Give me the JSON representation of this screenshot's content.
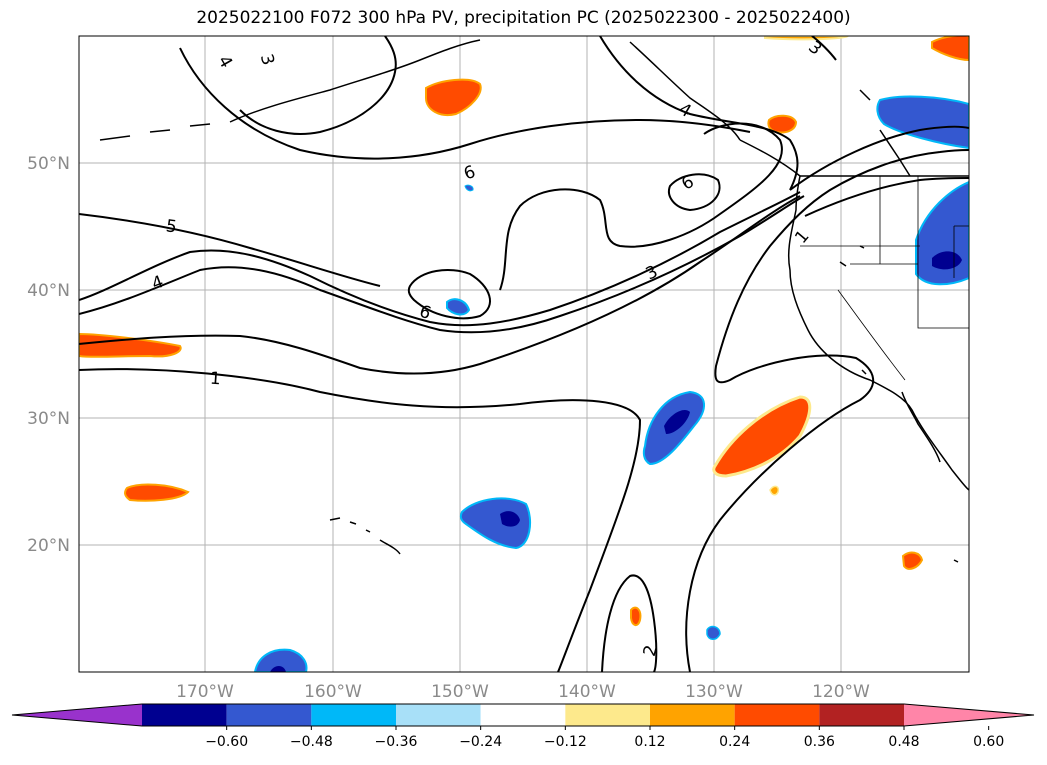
{
  "title": "2025022100 F072 300 hPa PV, precipitation PC (2025022300 - 2025022400)",
  "lat_labels": [
    "50°N",
    "40°N",
    "30°N",
    "20°N"
  ],
  "lon_labels": [
    "170°W",
    "160°W",
    "150°W",
    "140°W",
    "130°W",
    "120°W"
  ],
  "contour_labels": [
    "4",
    "3",
    "6",
    "6",
    "5",
    "4",
    "3",
    "6",
    "1",
    "1",
    "2",
    "3",
    "4"
  ],
  "colorbar": {
    "ticks": [
      "−0.60",
      "−0.48",
      "−0.36",
      "−0.24",
      "−0.12",
      "0.12",
      "0.24",
      "0.36",
      "0.48",
      "0.60"
    ],
    "colors": [
      "#9932cc",
      "#000090",
      "#3458d0",
      "#00b8f8",
      "#a8e0f8",
      "#ffffff",
      "#fde98c",
      "#ffa300",
      "#ff4b00",
      "#b22222",
      "#ff85a8"
    ]
  }
}
